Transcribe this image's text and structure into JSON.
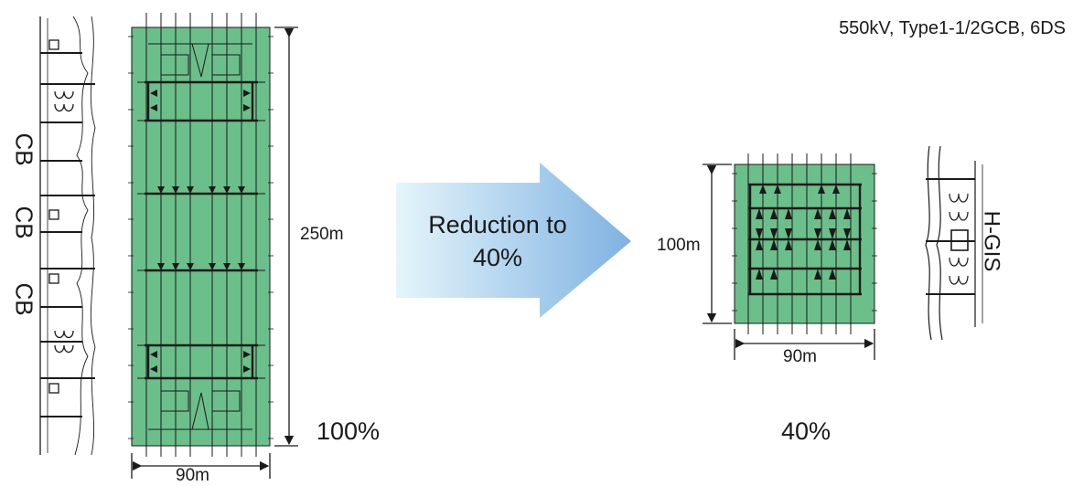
{
  "header": {
    "spec": "550kV, Type1-1/2GCB, 6DS"
  },
  "conventional": {
    "height_label": "250m",
    "width_label": "90m",
    "percent_label": "100%",
    "cb_labels": [
      "CB",
      "CB",
      "CB"
    ]
  },
  "arrow": {
    "line1": "Reduction to",
    "line2": "40%"
  },
  "hgis": {
    "height_label": "100m",
    "width_label": "90m",
    "percent_label": "40%",
    "side_label": "H-GIS"
  },
  "colors": {
    "area_fill": "#6bbf8a",
    "arrow_light": "#dff3fb",
    "arrow_dark": "#7fb5e3",
    "line": "#1a1a1a"
  }
}
